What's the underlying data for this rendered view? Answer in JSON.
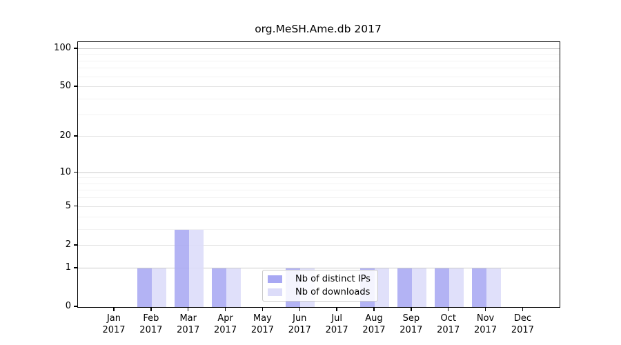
{
  "chart_data": {
    "type": "bar",
    "title": "org.MeSH.Ame.db 2017",
    "categories": [
      "Jan",
      "Feb",
      "Mar",
      "Apr",
      "May",
      "Jun",
      "Jul",
      "Aug",
      "Sep",
      "Oct",
      "Nov",
      "Dec"
    ],
    "category_year": "2017",
    "series": [
      {
        "name": "Nb of distinct IPs",
        "color": "#a8a8f3",
        "values": [
          0,
          1,
          3,
          1,
          0,
          1,
          0,
          1,
          1,
          1,
          1,
          0
        ]
      },
      {
        "name": "Nb of downloads",
        "color": "#dcdcf9",
        "values": [
          0,
          1,
          3,
          1,
          0,
          1,
          0,
          1,
          1,
          1,
          1,
          0
        ]
      }
    ],
    "xlabel": "",
    "ylabel": "",
    "yticks": [
      0,
      1,
      2,
      5,
      10,
      20,
      50,
      100
    ],
    "ytick_labels": [
      "0",
      "1",
      "2",
      "5",
      "10",
      "20",
      "50",
      "100"
    ],
    "minor_gridlines": [
      3,
      4,
      6,
      7,
      8,
      9,
      30,
      40,
      60,
      70,
      80,
      90
    ],
    "emphasized_gridlines": [
      1,
      10,
      100
    ],
    "scale": "log1p",
    "ylim": [
      0,
      113
    ],
    "ymax": 113,
    "grid": "on",
    "legend_position": "lower-center",
    "colors": {
      "distinct_ips": "#a8a8f3",
      "downloads": "#dcdcf9",
      "gridline_minor": "#f2f2f2",
      "gridline_major": "#e3e3e3",
      "gridline_decade": "#c9c9c9",
      "spine": "#000000",
      "background": "#ffffff"
    }
  }
}
